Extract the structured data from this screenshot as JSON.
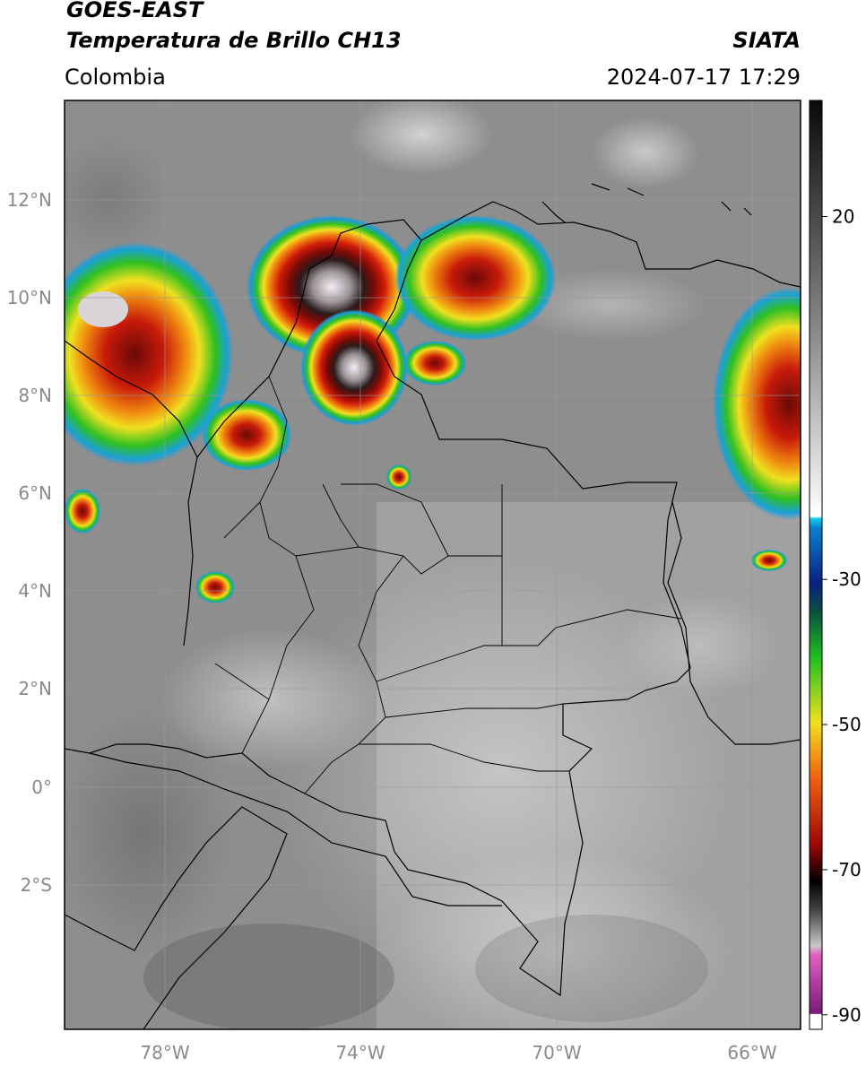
{
  "header": {
    "satellite": "GOES-EAST",
    "product": "Temperatura de Brillo CH13",
    "agency": "SIATA",
    "region": "Colombia",
    "timestamp": "2024-07-17 17:29"
  },
  "map": {
    "lat_labels": [
      "12°N",
      "10°N",
      "8°N",
      "6°N",
      "4°N",
      "2°N",
      "0°",
      "2°S"
    ],
    "lon_labels": [
      "78°W",
      "74°W",
      "70°W",
      "66°W"
    ]
  },
  "colorbar": {
    "tick_labels": [
      "20",
      "-30",
      "-50",
      "-70",
      "-90"
    ],
    "range": [
      -92,
      36
    ]
  },
  "colors": {
    "frame": "#000000",
    "border_lines": "#000000",
    "gridlines": "#9a9a9a"
  }
}
